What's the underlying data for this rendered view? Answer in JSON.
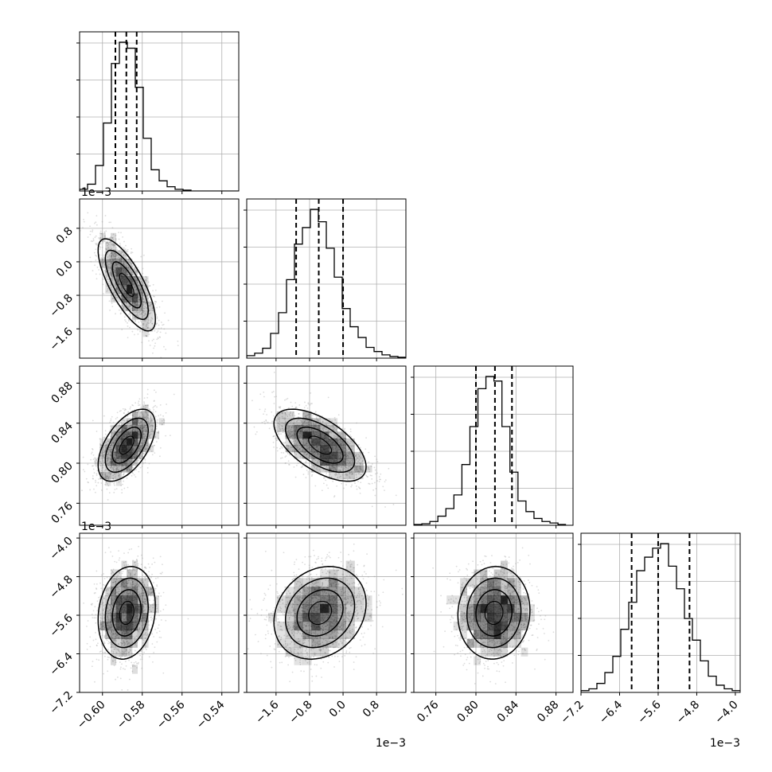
{
  "chart_data": {
    "type": "corner",
    "colors": {
      "line": "#000000",
      "grid": "#b0b0b0",
      "density": "#000000"
    },
    "grid": true,
    "parameters": [
      {
        "index": 0,
        "offset_label": "",
        "range": [
          -0.6115,
          -0.5315
        ],
        "ticks": [
          -0.6,
          -0.58,
          -0.56,
          -0.54
        ],
        "tick_labels": [
          "−0.60",
          "−0.58",
          "−0.56",
          "−0.54"
        ]
      },
      {
        "index": 1,
        "offset_label": "1e−3",
        "range": [
          -2.3,
          1.5
        ],
        "ticks": [
          -1.6,
          -0.8,
          0.0,
          0.8
        ],
        "tick_labels": [
          "−1.6",
          "−0.8",
          "0.0",
          "0.8"
        ]
      },
      {
        "index": 2,
        "offset_label": "",
        "range": [
          0.738,
          0.897
        ],
        "ticks": [
          0.76,
          0.8,
          0.84,
          0.88
        ],
        "tick_labels": [
          "0.76",
          "0.80",
          "0.84",
          "0.88"
        ]
      },
      {
        "index": 3,
        "offset_label": "1e−3",
        "range": [
          -7.2,
          -3.9
        ],
        "ticks": [
          -7.2,
          -6.4,
          -5.6,
          -4.8,
          -4.0
        ],
        "tick_labels": [
          "−7.2",
          "−6.4",
          "−5.6",
          "−4.8",
          "−4.0"
        ]
      }
    ],
    "marginals": [
      {
        "index": 0,
        "quantiles": [
          -0.5935,
          -0.588,
          -0.5828
        ],
        "bins": [
          -0.6115,
          -0.6075,
          -0.6035,
          -0.5995,
          -0.5955,
          -0.5915,
          -0.5875,
          -0.5835,
          -0.5795,
          -0.5755,
          -0.5715,
          -0.5675,
          -0.5635,
          -0.5595,
          -0.5555,
          -0.5515,
          -0.5475,
          -0.5435,
          -0.5395,
          -0.5355,
          -0.5315
        ],
        "counts": [
          2,
          8,
          30,
          80,
          150,
          175,
          168,
          122,
          62,
          25,
          12,
          5,
          2,
          1,
          0,
          0,
          0,
          0,
          0,
          0
        ]
      },
      {
        "index": 1,
        "quantiles": [
          -1.12,
          -0.58,
          0.0
        ],
        "bins": [
          -2.3,
          -2.11,
          -1.92,
          -1.73,
          -1.54,
          -1.35,
          -1.16,
          -0.97,
          -0.78,
          -0.59,
          -0.4,
          -0.21,
          -0.02,
          0.17,
          0.36,
          0.55,
          0.74,
          0.93,
          1.12,
          1.31,
          1.5
        ],
        "counts": [
          3,
          6,
          12,
          30,
          55,
          95,
          138,
          158,
          180,
          165,
          133,
          98,
          60,
          38,
          25,
          13,
          8,
          4,
          2,
          1
        ]
      },
      {
        "index": 2,
        "quantiles": [
          0.8,
          0.819,
          0.836
        ],
        "bins": [
          0.738,
          0.746,
          0.754,
          0.762,
          0.77,
          0.778,
          0.786,
          0.794,
          0.802,
          0.81,
          0.818,
          0.826,
          0.834,
          0.842,
          0.85,
          0.858,
          0.866,
          0.874,
          0.882,
          0.89
        ],
        "counts": [
          1,
          2,
          5,
          12,
          22,
          40,
          80,
          130,
          180,
          196,
          190,
          130,
          70,
          32,
          18,
          9,
          5,
          3,
          1
        ]
      },
      {
        "index": 3,
        "quantiles": [
          -6.15,
          -5.6,
          -4.95
        ],
        "bins": [
          -7.2,
          -7.035,
          -6.87,
          -6.705,
          -6.54,
          -6.375,
          -6.21,
          -6.045,
          -5.88,
          -5.715,
          -5.55,
          -5.385,
          -5.22,
          -5.055,
          -4.89,
          -4.725,
          -4.56,
          -4.395,
          -4.23,
          -4.065,
          -3.9
        ],
        "counts": [
          2,
          4,
          10,
          22,
          40,
          70,
          100,
          135,
          150,
          160,
          165,
          140,
          115,
          82,
          58,
          35,
          18,
          8,
          4,
          2
        ]
      }
    ],
    "pairs": [
      {
        "x_index": 0,
        "y_index": 1,
        "center": [
          -0.5878,
          -0.55
        ],
        "sd": [
          0.0072,
          0.55
        ],
        "corr": -0.75
      },
      {
        "x_index": 0,
        "y_index": 2,
        "center": [
          -0.5878,
          0.818
        ],
        "sd": [
          0.0072,
          0.018
        ],
        "corr": 0.55
      },
      {
        "x_index": 1,
        "y_index": 2,
        "center": [
          -0.55,
          0.818
        ],
        "sd": [
          0.55,
          0.018
        ],
        "corr": -0.6
      },
      {
        "x_index": 0,
        "y_index": 3,
        "center": [
          -0.5878,
          -5.55
        ],
        "sd": [
          0.0072,
          0.48
        ],
        "corr": 0.15
      },
      {
        "x_index": 1,
        "y_index": 3,
        "center": [
          -0.55,
          -5.55
        ],
        "sd": [
          0.55,
          0.48
        ],
        "corr": 0.2
      },
      {
        "x_index": 2,
        "y_index": 3,
        "center": [
          0.818,
          -5.55
        ],
        "sd": [
          0.018,
          0.48
        ],
        "corr": 0.05
      }
    ]
  }
}
